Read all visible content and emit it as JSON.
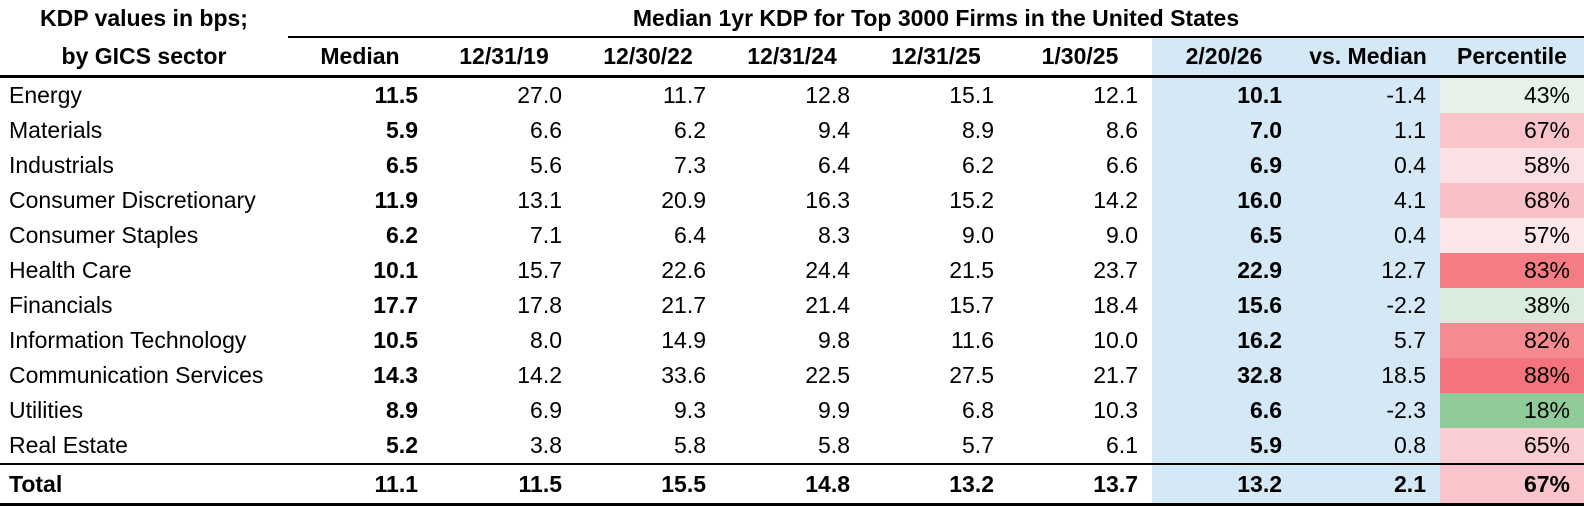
{
  "colors": {
    "highlight_blue": "#D4E8F6",
    "line_black": "#000000"
  },
  "chart_data": {
    "type": "table",
    "title": "Median 1yr KDP for Top 3000 Firms in the United States",
    "corner_label_line1": "KDP values in bps;",
    "corner_label_line2": "by GICS sector",
    "columns": [
      "Median",
      "12/31/19",
      "12/30/22",
      "12/31/24",
      "12/31/25",
      "1/30/25",
      "2/20/26",
      "vs. Median",
      "Percentile"
    ],
    "highlighted_columns": [
      "2/20/26",
      "vs. Median"
    ],
    "rows": [
      {
        "sector": "Energy",
        "cells": [
          "11.5",
          "27.0",
          "11.7",
          "12.8",
          "15.1",
          "12.1",
          "10.1",
          "-1.4",
          "43%"
        ],
        "percentile_color": "#E6F2E8",
        "is_total": false
      },
      {
        "sector": "Materials",
        "cells": [
          "5.9",
          "6.6",
          "6.2",
          "9.4",
          "8.9",
          "8.6",
          "7.0",
          "1.1",
          "67%"
        ],
        "percentile_color": "#F9C5CA",
        "is_total": false
      },
      {
        "sector": "Industrials",
        "cells": [
          "6.5",
          "5.6",
          "7.3",
          "6.4",
          "6.2",
          "6.6",
          "6.9",
          "0.4",
          "58%"
        ],
        "percentile_color": "#FBE1E5",
        "is_total": false
      },
      {
        "sector": "Consumer Discretionary",
        "cells": [
          "11.9",
          "13.1",
          "20.9",
          "16.3",
          "15.2",
          "14.2",
          "16.0",
          "4.1",
          "68%"
        ],
        "percentile_color": "#F8C1C6",
        "is_total": false
      },
      {
        "sector": "Consumer Staples",
        "cells": [
          "6.2",
          "7.1",
          "6.4",
          "8.3",
          "9.0",
          "9.0",
          "6.5",
          "0.4",
          "57%"
        ],
        "percentile_color": "#FCE7EA",
        "is_total": false
      },
      {
        "sector": "Health Care",
        "cells": [
          "10.1",
          "15.7",
          "22.6",
          "24.4",
          "21.5",
          "23.7",
          "22.9",
          "12.7",
          "83%"
        ],
        "percentile_color": "#F47C83",
        "is_total": false
      },
      {
        "sector": "Financials",
        "cells": [
          "17.7",
          "17.8",
          "21.7",
          "21.4",
          "15.7",
          "18.4",
          "15.6",
          "-2.2",
          "38%"
        ],
        "percentile_color": "#DAEDDD",
        "is_total": false
      },
      {
        "sector": "Information Technology",
        "cells": [
          "10.5",
          "8.0",
          "14.9",
          "9.8",
          "11.6",
          "10.0",
          "16.2",
          "5.7",
          "82%"
        ],
        "percentile_color": "#F58B91",
        "is_total": false
      },
      {
        "sector": "Communication Services",
        "cells": [
          "14.3",
          "14.2",
          "33.6",
          "22.5",
          "27.5",
          "21.7",
          "32.8",
          "18.5",
          "88%"
        ],
        "percentile_color": "#F4747C",
        "is_total": false
      },
      {
        "sector": "Utilities",
        "cells": [
          "8.9",
          "6.9",
          "9.3",
          "9.9",
          "6.8",
          "10.3",
          "6.6",
          "-2.3",
          "18%"
        ],
        "percentile_color": "#8FCC9A",
        "is_total": false
      },
      {
        "sector": "Real Estate",
        "cells": [
          "5.2",
          "3.8",
          "5.8",
          "5.8",
          "5.7",
          "6.1",
          "5.9",
          "0.8",
          "65%"
        ],
        "percentile_color": "#FACDD2",
        "is_total": false
      },
      {
        "sector": "Total",
        "cells": [
          "11.1",
          "11.5",
          "15.5",
          "14.8",
          "13.2",
          "13.7",
          "13.2",
          "2.1",
          "67%"
        ],
        "percentile_color": "#F9C5CA",
        "is_total": true
      }
    ]
  }
}
